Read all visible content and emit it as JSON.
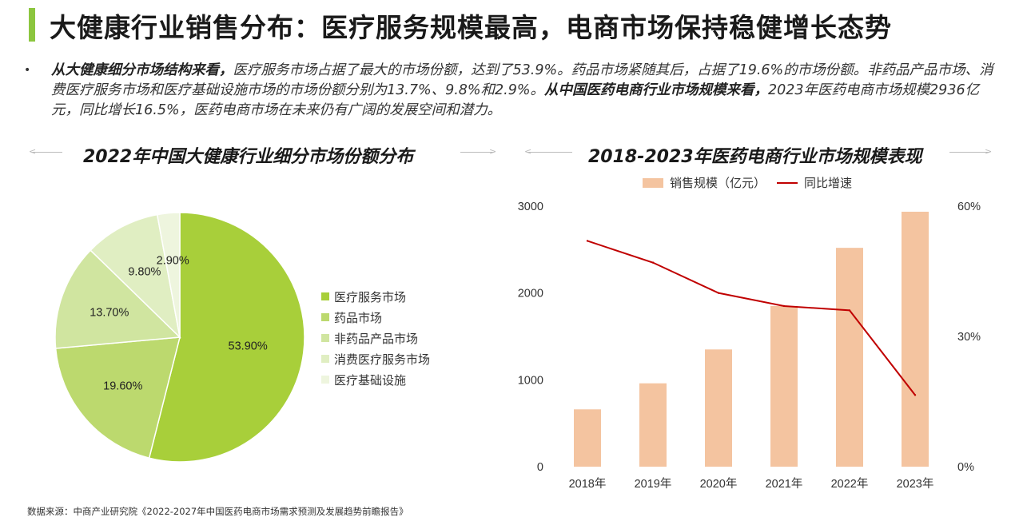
{
  "title": "大健康行业销售分布：医疗服务规模最高，电商市场保持稳健增长态势",
  "summary": {
    "bullet": "•",
    "p1_bold": "从大健康细分市场结构来看，",
    "p1": "医疗服务市场占据了最大的市场份额，达到了53.9%。药品市场紧随其后，占据了19.6%的市场份额。非药品产品市场、消费医疗服务市场和医疗基础设施市场的市场份额分别为13.7%、9.8%和2.9%。",
    "p2_bold": "从中国医药电商行业市场规模来看，",
    "p2": "2023年医药电商市场规模2936亿元，同比增长16.5%，医药电商市场在未来仍有广阔的发展空间和潜力。"
  },
  "source": "数据来源：中商产业研究院《2022-2027年中国医药电商市场需求预测及发展趋势前瞻报告》",
  "chart_data": [
    {
      "type": "pie",
      "title": "2022年中国大健康行业细分市场份额分布",
      "categories": [
        "医疗服务市场",
        "药品市场",
        "非药品产品市场",
        "消费医疗服务市场",
        "医疗基础设施"
      ],
      "values": [
        53.9,
        19.6,
        13.7,
        9.8,
        2.9
      ],
      "labels": [
        "53.90%",
        "19.60%",
        "13.70%",
        "9.80%",
        "2.90%"
      ],
      "colors": [
        "#a8cf3a",
        "#bcd96e",
        "#d0e5a0",
        "#e0eec2",
        "#eef5de"
      ],
      "legend": "right"
    },
    {
      "type": "bar",
      "title": "2018-2023年医药电商行业市场规模表现",
      "categories": [
        "2018年",
        "2019年",
        "2020年",
        "2021年",
        "2022年",
        "2023年"
      ],
      "series": [
        {
          "name": "销售规模（亿元）",
          "type": "bar",
          "axis": "left",
          "color": "#f4c4a0",
          "values": [
            660,
            960,
            1350,
            1850,
            2520,
            2936
          ]
        },
        {
          "name": "同比增速",
          "type": "line",
          "axis": "right",
          "color": "#c00000",
          "values": [
            52,
            47,
            40,
            37,
            36,
            16.5
          ]
        }
      ],
      "y_left": {
        "ticks": [
          "3000",
          "2000",
          "1000",
          "0"
        ],
        "range": [
          0,
          3000
        ]
      },
      "y_right": {
        "ticks": [
          "60%",
          "30%",
          "0%"
        ],
        "range": [
          0,
          60
        ]
      },
      "legend": "top"
    }
  ]
}
